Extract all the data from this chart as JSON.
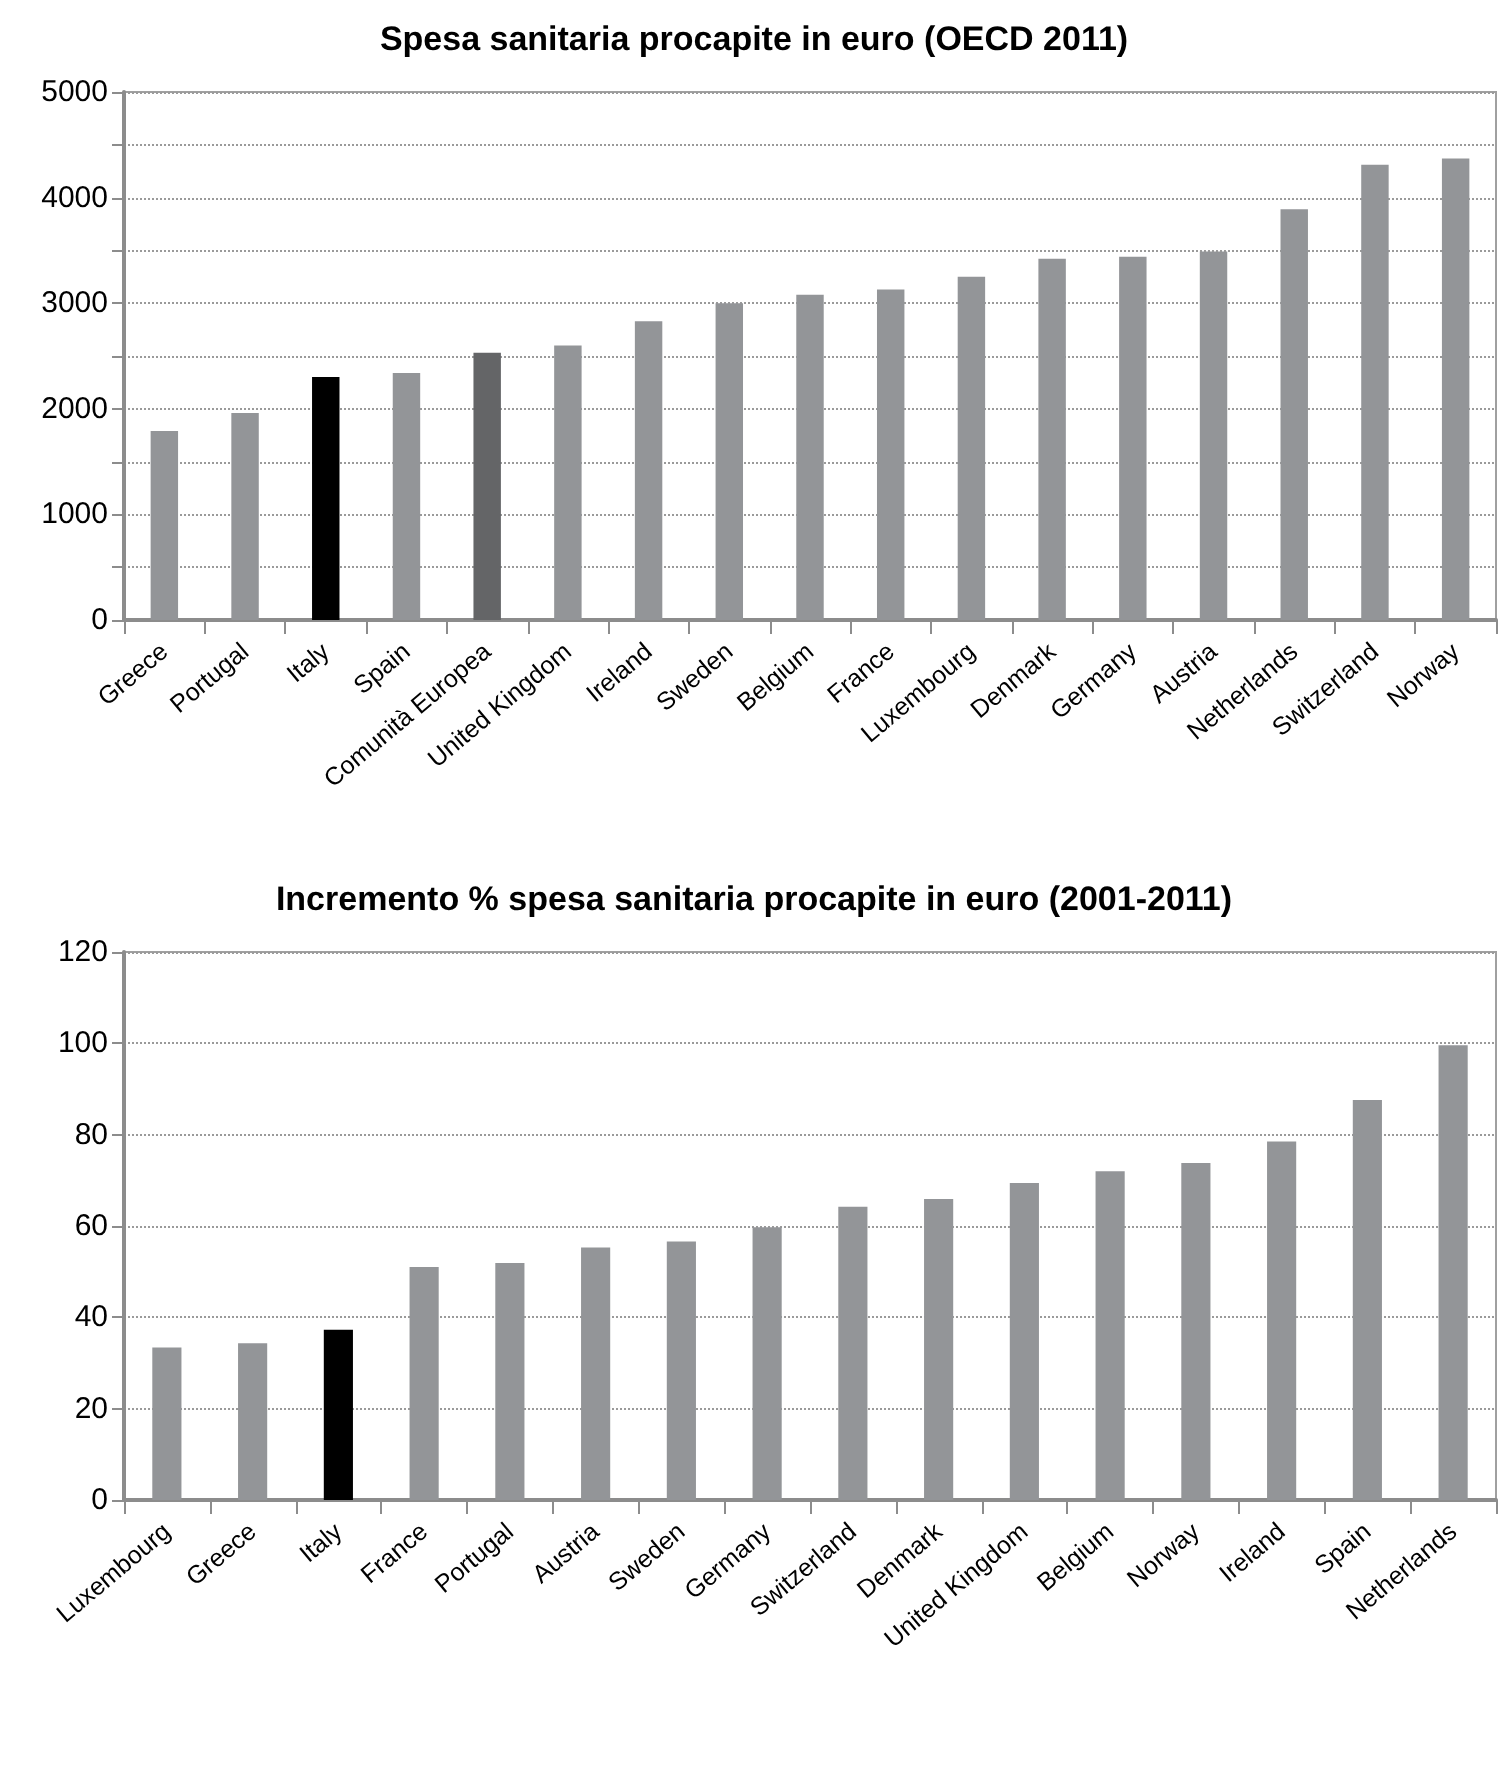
{
  "chart_data": [
    {
      "type": "bar",
      "title": "Spesa sanitaria procapite in euro (OECD 2011)",
      "categories": [
        "Greece",
        "Portugal",
        "Italy",
        "Spain",
        "Comunità Europea",
        "United Kingdom",
        "Ireland",
        "Sweden",
        "Belgium",
        "France",
        "Luxembourg",
        "Denmark",
        "Germany",
        "Austria",
        "Netherlands",
        "Switzerland",
        "Norway"
      ],
      "values": [
        1790,
        1960,
        2300,
        2340,
        2530,
        2600,
        2830,
        3000,
        3080,
        3130,
        3250,
        3420,
        3440,
        3490,
        3890,
        4310,
        4370
      ],
      "colors": [
        "#939598",
        "#939598",
        "#000000",
        "#939598",
        "#646567",
        "#939598",
        "#939598",
        "#939598",
        "#939598",
        "#939598",
        "#939598",
        "#939598",
        "#939598",
        "#939598",
        "#939598",
        "#939598",
        "#939598"
      ],
      "ylim": [
        0,
        5000
      ],
      "yticks": [
        0,
        {
          "value": 500,
          "label": null
        },
        1000,
        {
          "value": 1500,
          "label": null
        },
        2000,
        {
          "value": 2500,
          "label": null
        },
        3000,
        {
          "value": 3500,
          "label": null
        },
        4000,
        {
          "value": 4500,
          "label": null
        },
        5000
      ],
      "grid": "y"
    },
    {
      "type": "bar",
      "title": "Incremento % spesa sanitaria procapite in euro (2001-2011)",
      "categories": [
        "Luxembourg",
        "Greece",
        "Italy",
        "France",
        "Portugal",
        "Austria",
        "Sweden",
        "Germany",
        "Switzerland",
        "Denmark",
        "United Kingdom",
        "Belgium",
        "Norway",
        "Ireland",
        "Spain",
        "Netherlands"
      ],
      "values": [
        33.4,
        34.3,
        37.3,
        51,
        51.9,
        55.3,
        56.6,
        59.7,
        64.2,
        65.9,
        69.4,
        72,
        73.8,
        78.5,
        87.6,
        99.6
      ],
      "colors": [
        "#939598",
        "#939598",
        "#000000",
        "#939598",
        "#939598",
        "#939598",
        "#939598",
        "#939598",
        "#939598",
        "#939598",
        "#939598",
        "#939598",
        "#939598",
        "#939598",
        "#939598",
        "#939598"
      ],
      "ylim": [
        0,
        120
      ],
      "yticks": [
        0,
        20,
        40,
        60,
        80,
        100,
        120
      ],
      "grid": "y"
    }
  ]
}
